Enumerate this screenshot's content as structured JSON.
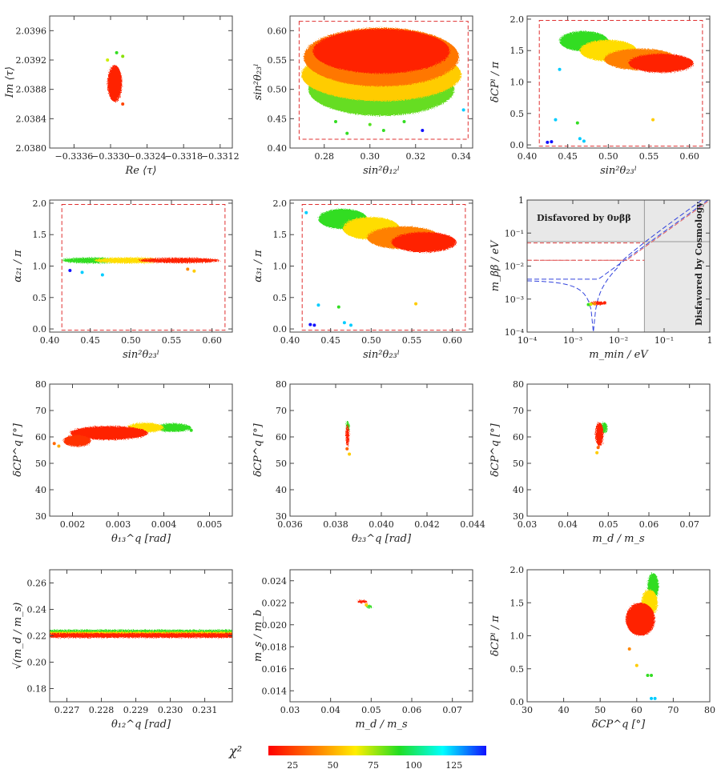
{
  "colorbar": {
    "label": "χ²",
    "ticks": [
      "25",
      "50",
      "75",
      "100",
      "125"
    ],
    "tick_values": [
      25,
      50,
      75,
      100,
      125
    ],
    "range": [
      10,
      145
    ],
    "gradient": [
      "#ff0000",
      "#ff8000",
      "#ffee00",
      "#22dd22",
      "#00ffff",
      "#1010ff"
    ]
  },
  "chart_data": [
    {
      "id": "p1",
      "type": "scatter",
      "xlabel": "Re ⟨τ⟩",
      "ylabel": "Im ⟨τ⟩",
      "xlim": [
        -0.334,
        -0.331
      ],
      "ylim": [
        2.038,
        2.0398
      ],
      "xticks": [
        -0.3336,
        -0.333,
        -0.3324,
        -0.3318,
        -0.3312
      ],
      "xticklabels": [
        "−0.3336",
        "−0.3330",
        "−0.3324",
        "−0.3318",
        "−0.3312"
      ],
      "yticks": [
        2.038,
        2.0384,
        2.0388,
        2.0392,
        2.0396
      ],
      "yticklabels": [
        "2.0380",
        "2.0384",
        "2.0388",
        "2.0392",
        "2.0396"
      ],
      "blobs": [
        {
          "cx": -0.33293,
          "cy": 2.03888,
          "rx": 0.00012,
          "ry": 0.00025,
          "color": "#ff2200"
        }
      ],
      "points": [
        [
          -0.3329,
          2.0393,
          "#33dd22"
        ],
        [
          -0.3328,
          2.03925,
          "#88e000"
        ],
        [
          -0.33305,
          2.0392,
          "#ccee00"
        ],
        [
          -0.3328,
          2.0386,
          "#ff4400"
        ]
      ]
    },
    {
      "id": "p2",
      "type": "scatter",
      "xlabel": "sin²θ₁₂ˡ",
      "ylabel": "sin²θ₂₃ˡ",
      "xlim": [
        0.265,
        0.345
      ],
      "ylim": [
        0.4,
        0.625
      ],
      "xticks": [
        0.28,
        0.3,
        0.32,
        0.34
      ],
      "xticklabels": [
        "0.28",
        "0.30",
        "0.32",
        "0.34"
      ],
      "yticks": [
        0.4,
        0.45,
        0.5,
        0.55,
        0.6
      ],
      "yticklabels": [
        "0.40",
        "0.45",
        "0.50",
        "0.55",
        "0.60"
      ],
      "dashed_box": [
        0.269,
        0.343,
        0.415,
        0.616
      ],
      "blobs": [
        {
          "cx": 0.305,
          "cy": 0.5,
          "rx": 0.032,
          "ry": 0.045,
          "color": "#66dd22"
        },
        {
          "cx": 0.305,
          "cy": 0.525,
          "rx": 0.035,
          "ry": 0.045,
          "color": "#ffcc00"
        },
        {
          "cx": 0.305,
          "cy": 0.555,
          "rx": 0.034,
          "ry": 0.05,
          "color": "#ff7700"
        },
        {
          "cx": 0.305,
          "cy": 0.565,
          "rx": 0.03,
          "ry": 0.038,
          "color": "#ff2200"
        }
      ],
      "points": [
        [
          0.285,
          0.445,
          "#33dd22"
        ],
        [
          0.3,
          0.44,
          "#55e022"
        ],
        [
          0.315,
          0.445,
          "#33dd22"
        ],
        [
          0.29,
          0.425,
          "#33dd22"
        ],
        [
          0.306,
          0.43,
          "#33dd22"
        ],
        [
          0.323,
          0.43,
          "#1010ff"
        ],
        [
          0.341,
          0.465,
          "#00ccff"
        ]
      ]
    },
    {
      "id": "p3",
      "type": "scatter",
      "xlabel": "sin²θ₂₃ˡ",
      "ylabel": "δCPˡ / π",
      "xlim": [
        0.4,
        0.625
      ],
      "ylim": [
        -0.05,
        2.05
      ],
      "xticks": [
        0.4,
        0.45,
        0.5,
        0.55,
        0.6
      ],
      "xticklabels": [
        "0.40",
        "0.45",
        "0.50",
        "0.55",
        "0.60"
      ],
      "yticks": [
        0,
        0.5,
        1,
        1.5,
        2
      ],
      "yticklabels": [
        "0.0",
        "0.5",
        "1.0",
        "1.5",
        "2.0"
      ],
      "dashed_box": [
        0.415,
        0.616,
        -0.02,
        1.98
      ],
      "blobs": [
        {
          "cx": 0.47,
          "cy": 1.65,
          "rx": 0.03,
          "ry": 0.16,
          "color": "#33dd22"
        },
        {
          "cx": 0.5,
          "cy": 1.5,
          "rx": 0.035,
          "ry": 0.17,
          "color": "#ffdd00"
        },
        {
          "cx": 0.54,
          "cy": 1.36,
          "rx": 0.045,
          "ry": 0.17,
          "color": "#ff8000"
        },
        {
          "cx": 0.565,
          "cy": 1.3,
          "rx": 0.04,
          "ry": 0.15,
          "color": "#ff2200"
        }
      ],
      "points": [
        [
          0.43,
          0.05,
          "#1010ff"
        ],
        [
          0.425,
          0.04,
          "#1010ff"
        ],
        [
          0.435,
          0.4,
          "#00ccff"
        ],
        [
          0.462,
          0.35,
          "#33dd22"
        ],
        [
          0.465,
          0.1,
          "#00ccff"
        ],
        [
          0.47,
          0.06,
          "#00ccff"
        ],
        [
          0.555,
          0.4,
          "#ffcc00"
        ],
        [
          0.44,
          1.2,
          "#00ccff"
        ]
      ]
    },
    {
      "id": "p4",
      "type": "scatter",
      "xlabel": "sin²θ₂₃ˡ",
      "ylabel": "α₂₁ / π",
      "xlim": [
        0.4,
        0.625
      ],
      "ylim": [
        -0.05,
        2.05
      ],
      "xticks": [
        0.4,
        0.45,
        0.5,
        0.55,
        0.6
      ],
      "xticklabels": [
        "0.40",
        "0.45",
        "0.50",
        "0.55",
        "0.60"
      ],
      "yticks": [
        0,
        0.5,
        1,
        1.5,
        2
      ],
      "yticklabels": [
        "0.0",
        "0.5",
        "1.0",
        "1.5",
        "2.0"
      ],
      "dashed_box": [
        0.415,
        0.616,
        -0.02,
        1.98
      ],
      "blobs": [
        {
          "cx": 0.455,
          "cy": 1.09,
          "rx": 0.04,
          "ry": 0.045,
          "color": "#33dd22"
        },
        {
          "cx": 0.5,
          "cy": 1.09,
          "rx": 0.045,
          "ry": 0.045,
          "color": "#ffdd00"
        },
        {
          "cx": 0.56,
          "cy": 1.09,
          "rx": 0.05,
          "ry": 0.04,
          "color": "#ff2200"
        }
      ],
      "points": [
        [
          0.425,
          0.93,
          "#1010ff"
        ],
        [
          0.44,
          0.9,
          "#00ccff"
        ],
        [
          0.465,
          0.86,
          "#00ccff"
        ],
        [
          0.57,
          0.95,
          "#ff8800"
        ],
        [
          0.578,
          0.92,
          "#ffcc00"
        ]
      ]
    },
    {
      "id": "p5",
      "type": "scatter",
      "xlabel": "sin²θ₂₃ˡ",
      "ylabel": "α₃₁ / π",
      "xlim": [
        0.4,
        0.625
      ],
      "ylim": [
        -0.05,
        2.05
      ],
      "xticks": [
        0.4,
        0.45,
        0.5,
        0.55,
        0.6
      ],
      "xticklabels": [
        "0.40",
        "0.45",
        "0.50",
        "0.55",
        "0.60"
      ],
      "yticks": [
        0,
        0.5,
        1,
        1.5,
        2
      ],
      "yticklabels": [
        "0.0",
        "0.5",
        "1.0",
        "1.5",
        "2.0"
      ],
      "dashed_box": [
        0.415,
        0.616,
        -0.02,
        1.98
      ],
      "blobs": [
        {
          "cx": 0.465,
          "cy": 1.75,
          "rx": 0.03,
          "ry": 0.16,
          "color": "#33dd22"
        },
        {
          "cx": 0.5,
          "cy": 1.6,
          "rx": 0.035,
          "ry": 0.18,
          "color": "#ffdd00"
        },
        {
          "cx": 0.54,
          "cy": 1.45,
          "rx": 0.045,
          "ry": 0.18,
          "color": "#ff8000"
        },
        {
          "cx": 0.565,
          "cy": 1.38,
          "rx": 0.04,
          "ry": 0.16,
          "color": "#ff2200"
        }
      ],
      "points": [
        [
          0.425,
          0.07,
          "#1010ff"
        ],
        [
          0.43,
          0.06,
          "#1010ff"
        ],
        [
          0.435,
          0.38,
          "#00ccff"
        ],
        [
          0.46,
          0.35,
          "#33dd22"
        ],
        [
          0.467,
          0.1,
          "#00ccff"
        ],
        [
          0.475,
          0.06,
          "#00ccff"
        ],
        [
          0.555,
          0.4,
          "#ffcc00"
        ],
        [
          0.42,
          1.85,
          "#00ccff"
        ]
      ]
    },
    {
      "id": "p6",
      "type": "scatter",
      "xscale": "log",
      "yscale": "log",
      "xlabel": "m_min / eV",
      "ylabel": "m_ββ / eV",
      "xlim": [
        0.0001,
        1
      ],
      "ylim": [
        0.0001,
        1
      ],
      "xticks": [
        0.0001,
        0.001,
        0.01,
        0.1,
        1
      ],
      "xticklabels": [
        "10⁻⁴",
        "10⁻³",
        "10⁻²",
        "10⁻¹",
        "1"
      ],
      "yticks": [
        0.0001,
        0.001,
        0.01,
        0.1,
        1
      ],
      "yticklabels": [
        "10⁻⁴",
        "10⁻³",
        "10⁻²",
        "10⁻¹",
        "1"
      ],
      "annotations": [
        "Disfavored by 0νββ",
        "Disfavored by Cosmology"
      ],
      "shade_x_min": 0.037,
      "shade_y_min": 0.055,
      "red_dash_levels": [
        0.05,
        0.015
      ],
      "blobs": [
        {
          "cx": 0.0035,
          "cy": 0.00075,
          "rx": 0.0017,
          "ry": 6e-05,
          "color": "#ff2200"
        }
      ],
      "points": [
        [
          0.0022,
          0.00068,
          "#33dd22"
        ],
        [
          0.0025,
          0.0007,
          "#ccee00"
        ],
        [
          0.003,
          0.00072,
          "#ff8800"
        ],
        [
          0.004,
          0.00075,
          "#ff2200"
        ],
        [
          0.005,
          0.00077,
          "#ff2200"
        ]
      ]
    },
    {
      "id": "p7",
      "type": "scatter",
      "xlabel": "θ₁₃^q [rad]",
      "ylabel": "δCP^q [°]",
      "xlim": [
        0.0015,
        0.0055
      ],
      "ylim": [
        30,
        80
      ],
      "xticks": [
        0.002,
        0.003,
        0.004,
        0.005
      ],
      "xticklabels": [
        "0.002",
        "0.003",
        "0.004",
        "0.005"
      ],
      "yticks": [
        30,
        40,
        50,
        60,
        70,
        80
      ],
      "yticklabels": [
        "30",
        "40",
        "50",
        "60",
        "70",
        "80"
      ],
      "blobs": [
        {
          "cx": 0.0042,
          "cy": 63.5,
          "rx": 0.0004,
          "ry": 1.6,
          "color": "#33dd22"
        },
        {
          "cx": 0.0036,
          "cy": 63.5,
          "rx": 0.0004,
          "ry": 1.8,
          "color": "#ffdd00"
        },
        {
          "cx": 0.0028,
          "cy": 61.5,
          "rx": 0.00085,
          "ry": 2.6,
          "color": "#ff2200"
        },
        {
          "cx": 0.0021,
          "cy": 58.5,
          "rx": 0.0003,
          "ry": 2.2,
          "color": "#ff3300"
        }
      ],
      "points": [
        [
          0.0017,
          56.5,
          "#ffaa00"
        ],
        [
          0.0016,
          57.5,
          "#ff6600"
        ],
        [
          0.0046,
          62.5,
          "#33dd22"
        ]
      ]
    },
    {
      "id": "p8",
      "type": "scatter",
      "xlabel": "θ₂₃^q [rad]",
      "ylabel": "δCP^q [°]",
      "xlim": [
        0.036,
        0.044
      ],
      "ylim": [
        30,
        80
      ],
      "xticks": [
        0.036,
        0.038,
        0.04,
        0.042,
        0.044
      ],
      "xticklabels": [
        "0.036",
        "0.038",
        "0.040",
        "0.042",
        "0.044"
      ],
      "yticks": [
        30,
        40,
        50,
        60,
        70,
        80
      ],
      "yticklabels": [
        "30",
        "40",
        "50",
        "60",
        "70",
        "80"
      ],
      "blobs": [
        {
          "cx": 0.03853,
          "cy": 63.5,
          "rx": 8e-05,
          "ry": 2.5,
          "color": "#33dd22"
        },
        {
          "cx": 0.03852,
          "cy": 60.5,
          "rx": 8e-05,
          "ry": 4,
          "color": "#ff2200"
        }
      ],
      "points": [
        [
          0.0386,
          53.5,
          "#ffcc00"
        ],
        [
          0.0385,
          55.5,
          "#ff6600"
        ]
      ]
    },
    {
      "id": "p9",
      "type": "scatter",
      "xlabel": "m_d / m_s",
      "ylabel": "δCP^q [°]",
      "xlim": [
        0.03,
        0.075
      ],
      "ylim": [
        30,
        80
      ],
      "xticks": [
        0.03,
        0.04,
        0.05,
        0.06,
        0.07
      ],
      "xticklabels": [
        "0.03",
        "0.04",
        "0.05",
        "0.06",
        "0.07"
      ],
      "yticks": [
        30,
        40,
        50,
        60,
        70,
        80
      ],
      "yticklabels": [
        "30",
        "40",
        "50",
        "60",
        "70",
        "80"
      ],
      "blobs": [
        {
          "cx": 0.049,
          "cy": 63.5,
          "rx": 0.0008,
          "ry": 2.0,
          "color": "#33dd22"
        },
        {
          "cx": 0.0478,
          "cy": 61,
          "rx": 0.001,
          "ry": 4.5,
          "color": "#ff2200"
        }
      ],
      "points": [
        [
          0.0472,
          54,
          "#ffcc00"
        ],
        [
          0.0475,
          56,
          "#ff6600"
        ]
      ]
    },
    {
      "id": "p10",
      "type": "scatter",
      "xlabel": "θ₁₂^q [rad]",
      "ylabel": "√(m_d / m_s)",
      "xlim": [
        0.2265,
        0.2318
      ],
      "ylim": [
        0.17,
        0.27
      ],
      "xticks": [
        0.227,
        0.228,
        0.229,
        0.23,
        0.231
      ],
      "xticklabels": [
        "0.227",
        "0.228",
        "0.229",
        "0.230",
        "0.231"
      ],
      "yticks": [
        0.18,
        0.2,
        0.22,
        0.24,
        0.26
      ],
      "yticklabels": [
        "0.18",
        "0.20",
        "0.22",
        "0.24",
        "0.26"
      ],
      "bands": [
        {
          "ymin": 0.2225,
          "ymax": 0.2245,
          "color": "#33dd22"
        },
        {
          "ymin": 0.2215,
          "ymax": 0.223,
          "color": "#ffdd00"
        },
        {
          "ymin": 0.2185,
          "ymax": 0.222,
          "color": "#ff2200"
        }
      ],
      "points": []
    },
    {
      "id": "p11",
      "type": "scatter",
      "xlabel": "m_d / m_s",
      "ylabel": "m_s / m_b",
      "xlim": [
        0.03,
        0.075
      ],
      "ylim": [
        0.013,
        0.025
      ],
      "xticks": [
        0.03,
        0.04,
        0.05,
        0.06,
        0.07
      ],
      "xticklabels": [
        "0.03",
        "0.04",
        "0.05",
        "0.06",
        "0.07"
      ],
      "yticks": [
        0.014,
        0.016,
        0.018,
        0.02,
        0.022,
        0.024
      ],
      "yticklabels": [
        "0.014",
        "0.016",
        "0.018",
        "0.020",
        "0.022",
        "0.024"
      ],
      "blobs": [
        {
          "cx": 0.0495,
          "cy": 0.02165,
          "rx": 0.0007,
          "ry": 6e-05,
          "color": "#33dd22"
        },
        {
          "cx": 0.0478,
          "cy": 0.0221,
          "rx": 0.0012,
          "ry": 8e-05,
          "color": "#ff2200"
        }
      ],
      "points": [
        [
          0.0488,
          0.0218,
          "#ffcc00"
        ]
      ]
    },
    {
      "id": "p12",
      "type": "scatter",
      "xlabel": "δCP^q [°]",
      "ylabel": "δCPˡ / π",
      "xlim": [
        30,
        80
      ],
      "ylim": [
        0,
        2
      ],
      "xticks": [
        30,
        40,
        50,
        60,
        70,
        80
      ],
      "xticklabels": [
        "30",
        "40",
        "50",
        "60",
        "70",
        "80"
      ],
      "yticks": [
        0,
        0.5,
        1,
        1.5,
        2
      ],
      "yticklabels": [
        "0.0",
        "0.5",
        "1.0",
        "1.5",
        "2.0"
      ],
      "blobs": [
        {
          "cx": 64.5,
          "cy": 1.75,
          "rx": 1.5,
          "ry": 0.2,
          "color": "#33dd22"
        },
        {
          "cx": 63.5,
          "cy": 1.5,
          "rx": 2.2,
          "ry": 0.2,
          "color": "#ffdd00"
        },
        {
          "cx": 61,
          "cy": 1.25,
          "rx": 4,
          "ry": 0.25,
          "color": "#ff2200"
        }
      ],
      "points": [
        [
          63,
          0.4,
          "#33dd22"
        ],
        [
          64,
          0.4,
          "#33dd22"
        ],
        [
          64,
          0.05,
          "#00ccff"
        ],
        [
          65,
          0.05,
          "#00ccff"
        ],
        [
          58,
          0.8,
          "#ff8800"
        ],
        [
          60,
          0.55,
          "#ffcc00"
        ]
      ]
    }
  ]
}
